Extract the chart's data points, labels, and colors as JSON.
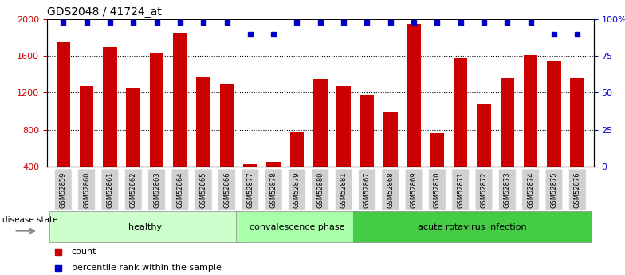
{
  "title": "GDS2048 / 41724_at",
  "samples": [
    "GSM52859",
    "GSM52860",
    "GSM52861",
    "GSM52862",
    "GSM52863",
    "GSM52864",
    "GSM52865",
    "GSM52866",
    "GSM52877",
    "GSM52878",
    "GSM52879",
    "GSM52880",
    "GSM52881",
    "GSM52867",
    "GSM52868",
    "GSM52869",
    "GSM52870",
    "GSM52871",
    "GSM52872",
    "GSM52873",
    "GSM52874",
    "GSM52875",
    "GSM52876"
  ],
  "counts": [
    1750,
    1270,
    1700,
    1250,
    1640,
    1850,
    1380,
    1290,
    420,
    450,
    775,
    1350,
    1270,
    1180,
    1000,
    1950,
    760,
    1580,
    1070,
    1360,
    1610,
    1540,
    1360
  ],
  "percentiles": [
    98,
    98,
    98,
    98,
    98,
    98,
    98,
    98,
    90,
    90,
    98,
    98,
    98,
    98,
    98,
    98,
    98,
    98,
    98,
    98,
    98,
    90,
    90
  ],
  "bar_color": "#CC0000",
  "dot_color": "#0000CC",
  "ylim_left": [
    400,
    2000
  ],
  "ylim_right": [
    0,
    100
  ],
  "yticks_left": [
    400,
    800,
    1200,
    1600,
    2000
  ],
  "yticks_right": [
    0,
    25,
    50,
    75,
    100
  ],
  "ytick_labels_right": [
    "0",
    "25",
    "50",
    "75",
    "100%"
  ],
  "grid_values": [
    800,
    1200,
    1600
  ],
  "bar_width": 0.6,
  "healthy_color": "#CCFFCC",
  "conv_color": "#AAFFAA",
  "acute_color": "#55DD55",
  "xticklabel_bg": "#D0D0D0",
  "groups": [
    {
      "label": "healthy",
      "start": 0,
      "end": 7,
      "color": "#CCFFCC"
    },
    {
      "label": "convalescence phase",
      "start": 8,
      "end": 12,
      "color": "#AAFFAA"
    },
    {
      "label": "acute rotavirus infection",
      "start": 13,
      "end": 22,
      "color": "#44CC44"
    }
  ]
}
